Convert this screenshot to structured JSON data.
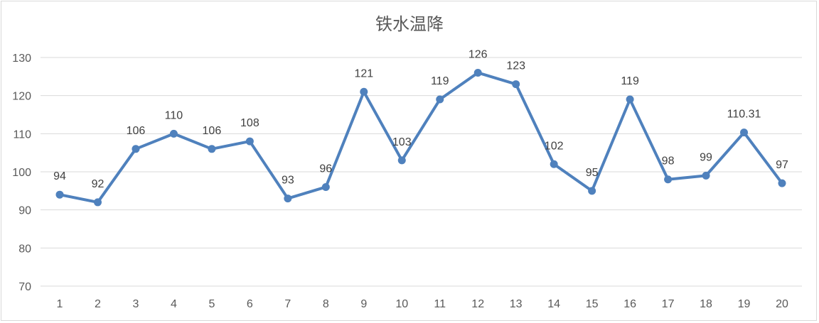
{
  "chart_data": {
    "type": "line",
    "title": "铁水温降",
    "categories": [
      "1",
      "2",
      "3",
      "4",
      "5",
      "6",
      "7",
      "8",
      "9",
      "10",
      "11",
      "12",
      "13",
      "14",
      "15",
      "16",
      "17",
      "18",
      "19",
      "20"
    ],
    "series": [
      {
        "values": [
          94,
          92,
          106,
          110,
          106,
          108,
          93,
          96,
          121,
          103,
          119,
          126,
          123,
          102,
          95,
          119,
          98,
          99,
          110.31,
          97
        ],
        "labels": [
          "94",
          "92",
          "106",
          "110",
          "106",
          "108",
          "93",
          "96",
          "121",
          "103",
          "119",
          "126",
          "123",
          "102",
          "95",
          "119",
          "98",
          "99",
          "110.31",
          "97"
        ]
      }
    ],
    "yticks": [
      "70",
      "80",
      "90",
      "100",
      "110",
      "120",
      "130"
    ],
    "ylim": [
      70,
      130
    ],
    "grid": true,
    "legend": "none",
    "colors": {
      "line": "#4F81BD",
      "grid": "#d9d9d9",
      "text": "#595959"
    }
  }
}
